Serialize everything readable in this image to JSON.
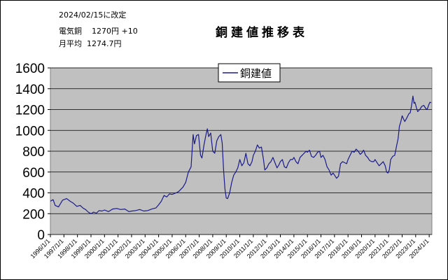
{
  "info": {
    "revised": "2024/02/15に改定",
    "price_label": "電気銅",
    "price_value": "1270円 +10",
    "avg_label": "月平均",
    "avg_value": "1274.7円"
  },
  "chart_data": {
    "type": "line",
    "title": "銅建値推移表",
    "xlabel": "",
    "ylabel": "",
    "ylim": [
      0,
      1600
    ],
    "yticks": [
      0,
      200,
      400,
      600,
      800,
      1000,
      1200,
      1400,
      1600
    ],
    "xlim": [
      1996.0,
      2024.2
    ],
    "x_tick_labels": [
      "1996/1/1",
      "1997/1/1",
      "1998/1/1",
      "1999/1/1",
      "2000/1/1",
      "2001/1/1",
      "2002/1/1",
      "2003/1/1",
      "2004/1/1",
      "2005/1/1",
      "2006/1/1",
      "2007/1/1",
      "2008/1/1",
      "2009/1/1",
      "2010/1/1",
      "2011/1/1",
      "2012/1/1",
      "2013/1/1",
      "2014/1/1",
      "2015/1/1",
      "2016/1/1",
      "2017/1/1",
      "2018/1/1",
      "2019/1/1",
      "2020/1/1",
      "2021/1/1",
      "2022/1/1",
      "2023/1/1",
      "2024/1/1"
    ],
    "grid": true,
    "legend_position": "top-center",
    "series": [
      {
        "name": "銅建値",
        "color": "#1a1a8c",
        "points": [
          [
            1996.0,
            320
          ],
          [
            1996.2,
            335
          ],
          [
            1996.35,
            280
          ],
          [
            1996.6,
            265
          ],
          [
            1996.9,
            330
          ],
          [
            1997.2,
            345
          ],
          [
            1997.45,
            320
          ],
          [
            1997.7,
            300
          ],
          [
            1997.95,
            270
          ],
          [
            1998.2,
            280
          ],
          [
            1998.4,
            255
          ],
          [
            1998.6,
            240
          ],
          [
            1998.8,
            215
          ],
          [
            1999.0,
            200
          ],
          [
            1999.2,
            215
          ],
          [
            1999.4,
            205
          ],
          [
            1999.6,
            230
          ],
          [
            1999.8,
            225
          ],
          [
            2000.0,
            235
          ],
          [
            2000.3,
            220
          ],
          [
            2000.6,
            245
          ],
          [
            2000.9,
            250
          ],
          [
            2001.2,
            240
          ],
          [
            2001.5,
            245
          ],
          [
            2001.8,
            220
          ],
          [
            2002.0,
            225
          ],
          [
            2002.3,
            230
          ],
          [
            2002.6,
            240
          ],
          [
            2002.9,
            225
          ],
          [
            2003.2,
            230
          ],
          [
            2003.5,
            245
          ],
          [
            2003.8,
            255
          ],
          [
            2004.0,
            285
          ],
          [
            2004.2,
            320
          ],
          [
            2004.4,
            375
          ],
          [
            2004.6,
            360
          ],
          [
            2004.8,
            390
          ],
          [
            2005.0,
            385
          ],
          [
            2005.3,
            400
          ],
          [
            2005.5,
            415
          ],
          [
            2005.8,
            455
          ],
          [
            2006.0,
            500
          ],
          [
            2006.2,
            600
          ],
          [
            2006.4,
            650
          ],
          [
            2006.55,
            960
          ],
          [
            2006.65,
            870
          ],
          [
            2006.8,
            950
          ],
          [
            2006.95,
            960
          ],
          [
            2007.1,
            760
          ],
          [
            2007.2,
            735
          ],
          [
            2007.35,
            860
          ],
          [
            2007.5,
            960
          ],
          [
            2007.6,
            1015
          ],
          [
            2007.7,
            940
          ],
          [
            2007.85,
            975
          ],
          [
            2008.0,
            800
          ],
          [
            2008.15,
            780
          ],
          [
            2008.3,
            900
          ],
          [
            2008.45,
            940
          ],
          [
            2008.6,
            960
          ],
          [
            2008.7,
            880
          ],
          [
            2008.8,
            620
          ],
          [
            2008.9,
            440
          ],
          [
            2009.0,
            350
          ],
          [
            2009.1,
            345
          ],
          [
            2009.25,
            400
          ],
          [
            2009.4,
            500
          ],
          [
            2009.55,
            570
          ],
          [
            2009.7,
            600
          ],
          [
            2009.85,
            640
          ],
          [
            2010.0,
            720
          ],
          [
            2010.15,
            660
          ],
          [
            2010.3,
            690
          ],
          [
            2010.45,
            780
          ],
          [
            2010.6,
            680
          ],
          [
            2010.75,
            660
          ],
          [
            2010.9,
            700
          ],
          [
            2011.0,
            760
          ],
          [
            2011.15,
            800
          ],
          [
            2011.3,
            860
          ],
          [
            2011.45,
            830
          ],
          [
            2011.6,
            840
          ],
          [
            2011.75,
            720
          ],
          [
            2011.85,
            620
          ],
          [
            2012.0,
            640
          ],
          [
            2012.15,
            680
          ],
          [
            2012.3,
            700
          ],
          [
            2012.45,
            740
          ],
          [
            2012.6,
            690
          ],
          [
            2012.75,
            640
          ],
          [
            2012.9,
            670
          ],
          [
            2013.0,
            700
          ],
          [
            2013.15,
            720
          ],
          [
            2013.3,
            650
          ],
          [
            2013.45,
            640
          ],
          [
            2013.6,
            690
          ],
          [
            2013.75,
            720
          ],
          [
            2013.9,
            720
          ],
          [
            2014.0,
            740
          ],
          [
            2014.15,
            700
          ],
          [
            2014.3,
            680
          ],
          [
            2014.45,
            740
          ],
          [
            2014.6,
            760
          ],
          [
            2014.75,
            780
          ],
          [
            2014.9,
            800
          ],
          [
            2015.0,
            790
          ],
          [
            2015.15,
            810
          ],
          [
            2015.3,
            750
          ],
          [
            2015.45,
            740
          ],
          [
            2015.6,
            760
          ],
          [
            2015.75,
            790
          ],
          [
            2015.9,
            800
          ],
          [
            2016.0,
            740
          ],
          [
            2016.15,
            760
          ],
          [
            2016.3,
            720
          ],
          [
            2016.45,
            650
          ],
          [
            2016.6,
            620
          ],
          [
            2016.75,
            570
          ],
          [
            2016.9,
            590
          ],
          [
            2017.0,
            570
          ],
          [
            2017.15,
            540
          ],
          [
            2017.3,
            560
          ],
          [
            2017.45,
            680
          ],
          [
            2017.6,
            700
          ],
          [
            2017.75,
            690
          ],
          [
            2017.9,
            680
          ],
          [
            2018.0,
            720
          ],
          [
            2018.15,
            760
          ],
          [
            2018.3,
            800
          ],
          [
            2018.45,
            790
          ],
          [
            2018.6,
            820
          ],
          [
            2018.75,
            800
          ],
          [
            2018.9,
            770
          ],
          [
            2019.0,
            780
          ],
          [
            2019.15,
            810
          ],
          [
            2019.3,
            760
          ],
          [
            2019.45,
            740
          ],
          [
            2019.6,
            710
          ],
          [
            2019.75,
            700
          ],
          [
            2019.9,
            700
          ],
          [
            2020.0,
            720
          ],
          [
            2020.15,
            690
          ],
          [
            2020.3,
            660
          ],
          [
            2020.45,
            680
          ],
          [
            2020.6,
            700
          ],
          [
            2020.75,
            660
          ],
          [
            2020.85,
            600
          ],
          [
            2020.95,
            590
          ],
          [
            2021.05,
            620
          ],
          [
            2021.15,
            720
          ],
          [
            2021.3,
            750
          ],
          [
            2021.45,
            760
          ],
          [
            2021.6,
            860
          ],
          [
            2021.7,
            920
          ],
          [
            2021.8,
            1040
          ],
          [
            2021.9,
            1080
          ],
          [
            2022.0,
            1140
          ],
          [
            2022.1,
            1110
          ],
          [
            2022.2,
            1085
          ],
          [
            2022.35,
            1120
          ],
          [
            2022.5,
            1160
          ],
          [
            2022.6,
            1170
          ],
          [
            2022.7,
            1240
          ],
          [
            2022.8,
            1330
          ],
          [
            2022.88,
            1260
          ],
          [
            2022.95,
            1270
          ],
          [
            2023.05,
            1220
          ],
          [
            2023.15,
            1180
          ],
          [
            2023.3,
            1200
          ],
          [
            2023.45,
            1230
          ],
          [
            2023.6,
            1240
          ],
          [
            2023.75,
            1210
          ],
          [
            2023.85,
            1200
          ],
          [
            2023.95,
            1240
          ],
          [
            2024.05,
            1270
          ],
          [
            2024.15,
            1265
          ]
        ]
      }
    ]
  }
}
